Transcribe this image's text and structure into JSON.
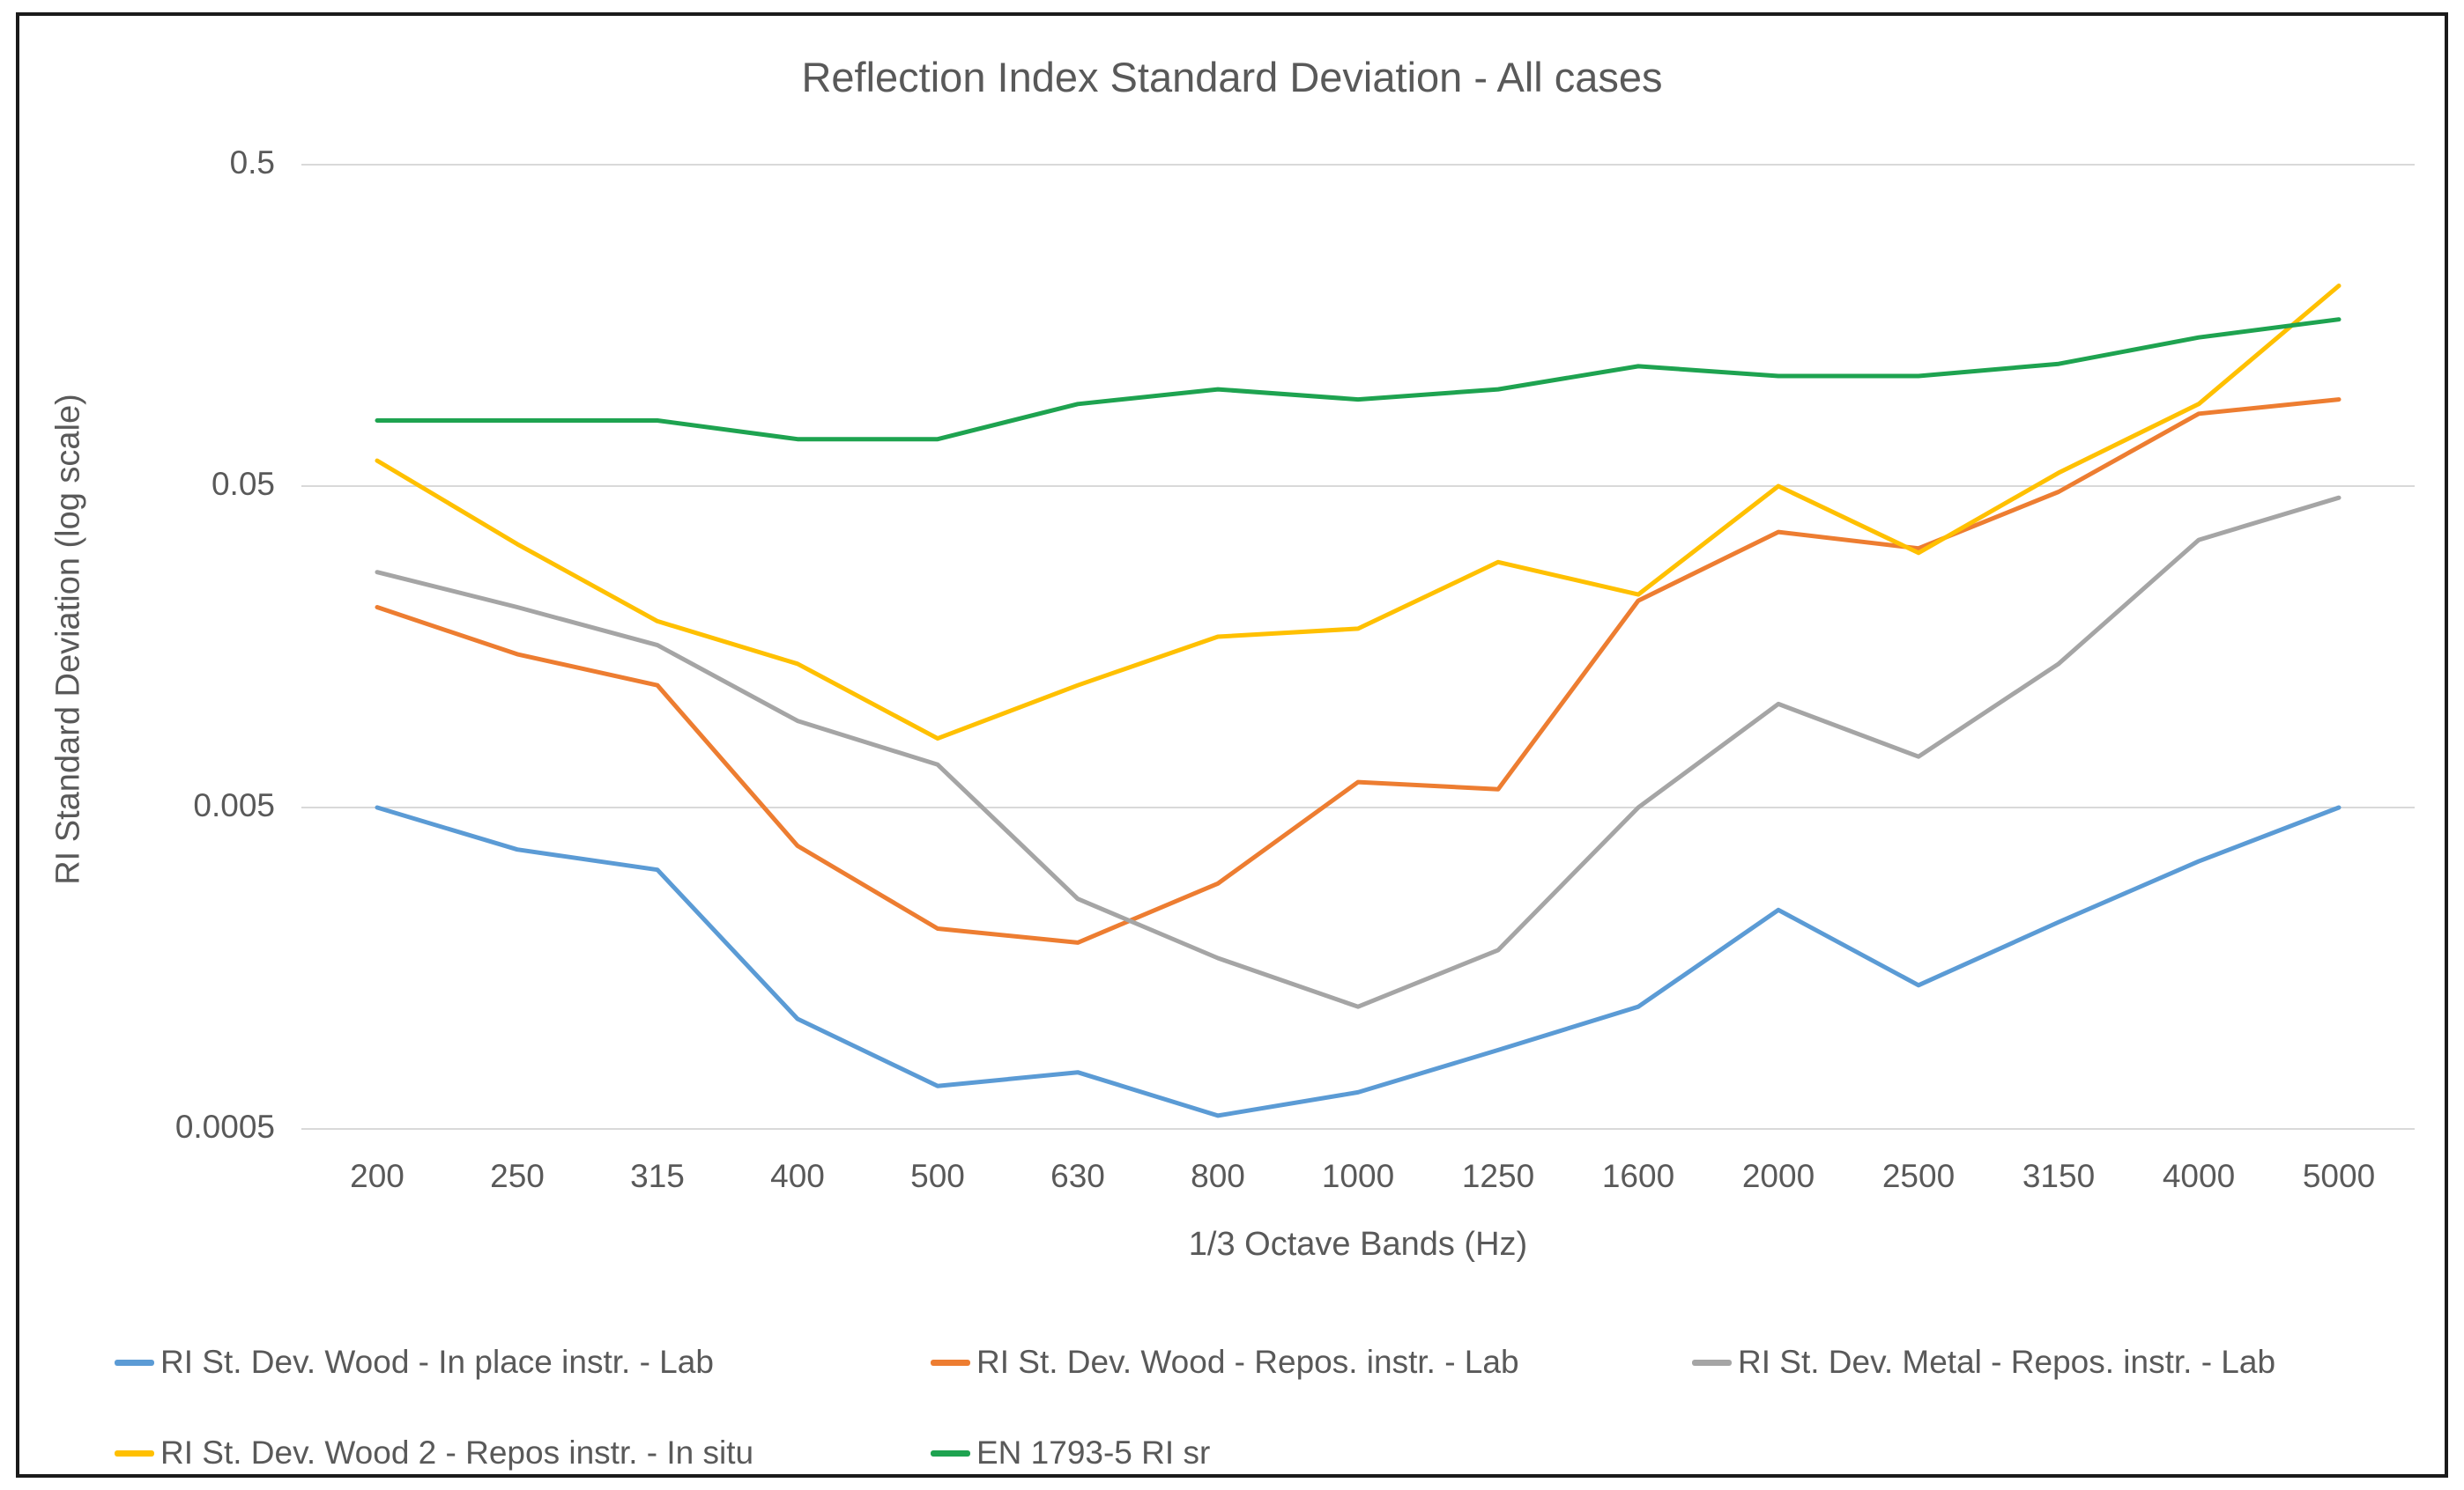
{
  "chart_data": {
    "type": "line",
    "title": "Reflection Index Standard Deviation - All cases",
    "xlabel": "1/3 Octave Bands (Hz)",
    "ylabel": "RI Standard Deviation (log scale)",
    "categories": [
      "200",
      "250",
      "315",
      "400",
      "500",
      "630",
      "800",
      "1000",
      "1250",
      "1600",
      "2000",
      "2500",
      "3150",
      "4000",
      "5000"
    ],
    "y_scale": "log",
    "ylim": [
      0.0005,
      0.5
    ],
    "y_ticks": [
      0.5,
      0.05,
      0.005,
      0.0005
    ],
    "y_tick_labels": [
      "0.5",
      "0.05",
      "0.005",
      "0.0005"
    ],
    "grid": "horizontal",
    "gridline_color": "#d9d9d9",
    "text_color": "#595959",
    "legend_position": "bottom",
    "series": [
      {
        "name": "RI St. Dev. Wood - In place instr. - Lab",
        "color": "#5B9BD5",
        "values": [
          0.005,
          0.0037,
          0.0032,
          0.0011,
          0.00068,
          0.00075,
          0.00055,
          0.00065,
          0.00088,
          0.0012,
          0.0024,
          0.0014,
          0.0022,
          0.0034,
          0.005
        ]
      },
      {
        "name": "RI St. Dev. Wood - Repos. instr. - Lab",
        "color": "#ED7D31",
        "values": [
          0.021,
          0.015,
          0.012,
          0.0038,
          0.0021,
          0.0019,
          0.0029,
          0.006,
          0.0057,
          0.022,
          0.036,
          0.032,
          0.048,
          0.084,
          0.093
        ]
      },
      {
        "name": "RI St. Dev. Metal - Repos. instr. - Lab",
        "color": "#A5A5A5",
        "values": [
          0.027,
          0.021,
          0.016,
          0.0093,
          0.0068,
          0.0026,
          0.0017,
          0.0012,
          0.0018,
          0.005,
          0.0105,
          0.0072,
          0.014,
          0.034,
          0.046
        ]
      },
      {
        "name": "RI St. Dev. Wood 2 - Repos instr. - In situ",
        "color": "#FFC000",
        "values": [
          0.06,
          0.033,
          0.019,
          0.014,
          0.0082,
          0.012,
          0.017,
          0.018,
          0.029,
          0.023,
          0.05,
          0.031,
          0.055,
          0.09,
          0.21
        ]
      },
      {
        "name": "EN 1793-5 RI sr",
        "color": "#1EA350",
        "values": [
          0.08,
          0.08,
          0.08,
          0.07,
          0.07,
          0.09,
          0.1,
          0.093,
          0.1,
          0.118,
          0.11,
          0.11,
          0.12,
          0.145,
          0.165
        ]
      }
    ]
  }
}
